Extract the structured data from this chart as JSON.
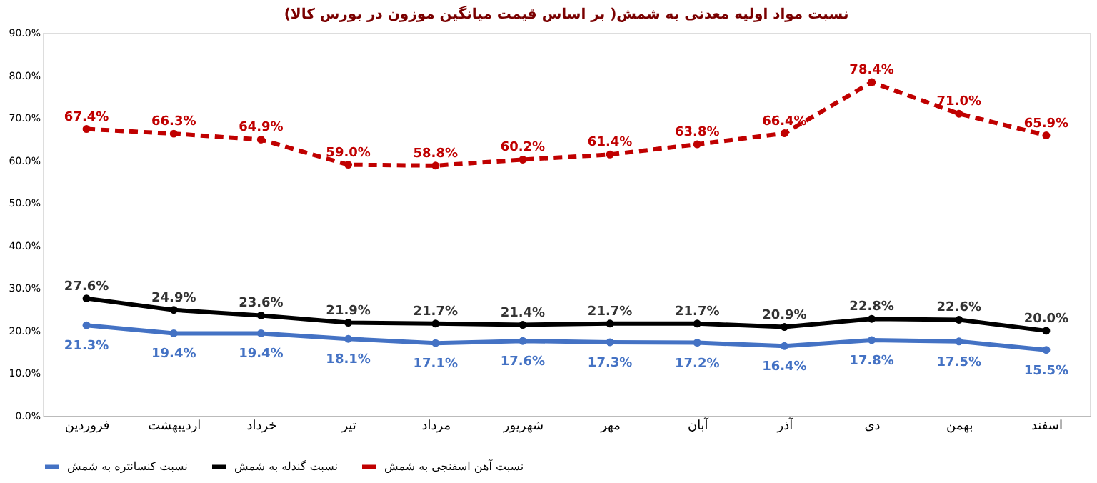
{
  "chart_data": {
    "type": "line",
    "title": "نسبت مواد اولیه معدنی به شمش( بر اساس قیمت میانگین موزون در بورس کالا)",
    "categories": [
      "فروردین",
      "اردیبهشت",
      "خرداد",
      "تیر",
      "مرداد",
      "شهریور",
      "مهر",
      "آبان",
      "آذر",
      "دی",
      "بهمن",
      "اسفند"
    ],
    "series": [
      {
        "name": "نسبت کنسانتره به شمش",
        "color": "#4472c4",
        "values": [
          21.3,
          19.4,
          19.4,
          18.1,
          17.1,
          17.6,
          17.3,
          17.2,
          16.4,
          17.8,
          17.5,
          15.5
        ],
        "value_labels": [
          "21.3%",
          "19.4%",
          "19.4%",
          "18.1%",
          "17.1%",
          "17.6%",
          "17.3%",
          "17.2%",
          "16.4%",
          "17.8%",
          "17.5%",
          "15.5%"
        ]
      },
      {
        "name": "نسبت گندله به شمش",
        "color": "#000000",
        "values": [
          27.6,
          24.9,
          23.6,
          21.9,
          21.7,
          21.4,
          21.7,
          21.7,
          20.9,
          22.8,
          22.6,
          20.0
        ],
        "value_labels": [
          "27.6%",
          "24.9%",
          "23.6%",
          "21.9%",
          "21.7%",
          "21.4%",
          "21.7%",
          "21.7%",
          "20.9%",
          "22.8%",
          "22.6%",
          "20.0%"
        ]
      },
      {
        "name": "نسبت آهن اسفنجی به شمش",
        "color": "#c00000",
        "line_style": "dashed",
        "values": [
          67.4,
          66.3,
          64.9,
          59.0,
          58.8,
          60.2,
          61.4,
          63.8,
          66.4,
          78.4,
          71.0,
          65.9
        ],
        "value_labels": [
          "67.4%",
          "66.3%",
          "64.9%",
          "59.0%",
          "58.8%",
          "60.2%",
          "61.4%",
          "63.8%",
          "66.4%",
          "78.4%",
          "71.0%",
          "65.9%"
        ]
      }
    ],
    "ylim": [
      0,
      90
    ],
    "yticks": [
      {
        "value": 0,
        "label": "0.0%"
      },
      {
        "value": 10,
        "label": "10.0%"
      },
      {
        "value": 20,
        "label": "20.0%"
      },
      {
        "value": 30,
        "label": "30.0%"
      },
      {
        "value": 40,
        "label": "40.0%"
      },
      {
        "value": 50,
        "label": "50.0%"
      },
      {
        "value": 60,
        "label": "60.0%"
      },
      {
        "value": 70,
        "label": "70.0%"
      },
      {
        "value": 80,
        "label": "80.0%"
      },
      {
        "value": 90,
        "label": "90.0%"
      }
    ],
    "marker": "circle",
    "grid": false,
    "legend": "bottom"
  }
}
